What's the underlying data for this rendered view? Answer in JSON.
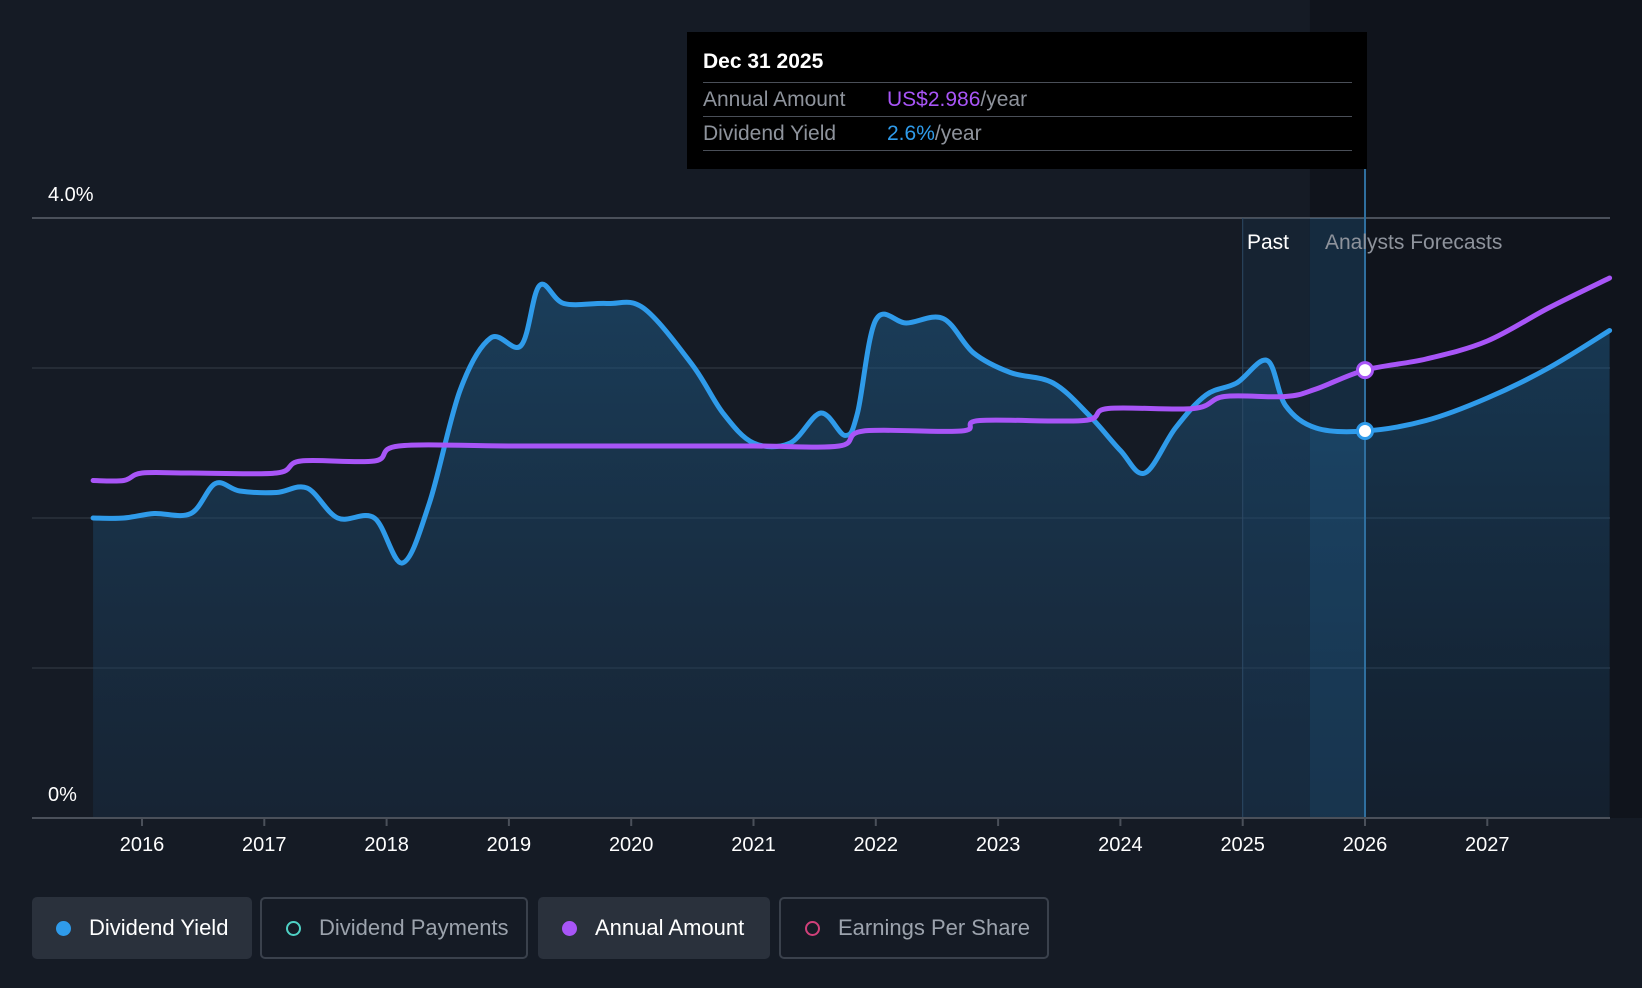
{
  "tooltip": {
    "date": "Dec 31 2025",
    "rows": [
      {
        "label": "Annual Amount",
        "value": "US$2.986",
        "unit": "/year"
      },
      {
        "label": "Dividend Yield",
        "value": "2.6%",
        "unit": "/year"
      }
    ]
  },
  "regions": {
    "past_label": "Past",
    "forecast_label": "Analysts Forecasts"
  },
  "legend": [
    {
      "label": "Dividend Yield",
      "color": "#2f9bea",
      "style": "filled",
      "active": true
    },
    {
      "label": "Dividend Payments",
      "color": "#4fd1c5",
      "style": "hollow",
      "active": false
    },
    {
      "label": "Annual Amount",
      "color": "#a855f7",
      "style": "filled",
      "active": true
    },
    {
      "label": "Earnings Per Share",
      "color": "#d0407a",
      "style": "hollow",
      "active": false
    }
  ],
  "chart_data": {
    "type": "line",
    "y_tick_labels": [
      "4.0%",
      "0%"
    ],
    "ylim": [
      0,
      4.0
    ],
    "xlim": [
      2015.55,
      2028.0
    ],
    "x_ticks": [
      2016,
      2017,
      2018,
      2019,
      2020,
      2021,
      2022,
      2023,
      2024,
      2025,
      2026,
      2027
    ],
    "x_tick_labels": [
      "2016",
      "2017",
      "2018",
      "2019",
      "2020",
      "2021",
      "2022",
      "2023",
      "2024",
      "2025",
      "2026",
      "2027"
    ],
    "grid": true,
    "forecast_start": 2025.55,
    "past_band_start": 2025.0,
    "highlight_x": 2026.0,
    "series": [
      {
        "name": "Dividend Yield",
        "color": "#2f9bea",
        "points": [
          [
            2015.6,
            2.0
          ],
          [
            2015.85,
            2.0
          ],
          [
            2016.1,
            2.03
          ],
          [
            2016.4,
            2.03
          ],
          [
            2016.6,
            2.23
          ],
          [
            2016.8,
            2.18
          ],
          [
            2017.1,
            2.17
          ],
          [
            2017.35,
            2.2
          ],
          [
            2017.6,
            2.0
          ],
          [
            2017.9,
            2.0
          ],
          [
            2018.13,
            1.7
          ],
          [
            2018.35,
            2.1
          ],
          [
            2018.6,
            2.85
          ],
          [
            2018.85,
            3.2
          ],
          [
            2019.1,
            3.15
          ],
          [
            2019.25,
            3.55
          ],
          [
            2019.45,
            3.43
          ],
          [
            2019.8,
            3.43
          ],
          [
            2020.1,
            3.4
          ],
          [
            2020.5,
            3.02
          ],
          [
            2020.75,
            2.7
          ],
          [
            2021.0,
            2.5
          ],
          [
            2021.3,
            2.5
          ],
          [
            2021.55,
            2.7
          ],
          [
            2021.75,
            2.55
          ],
          [
            2021.85,
            2.7
          ],
          [
            2022.0,
            3.32
          ],
          [
            2022.25,
            3.3
          ],
          [
            2022.55,
            3.33
          ],
          [
            2022.8,
            3.1
          ],
          [
            2023.1,
            2.97
          ],
          [
            2023.45,
            2.9
          ],
          [
            2023.75,
            2.68
          ],
          [
            2024.0,
            2.45
          ],
          [
            2024.2,
            2.3
          ],
          [
            2024.45,
            2.6
          ],
          [
            2024.7,
            2.82
          ],
          [
            2024.95,
            2.9
          ],
          [
            2025.2,
            3.05
          ],
          [
            2025.35,
            2.75
          ],
          [
            2025.6,
            2.6
          ],
          [
            2026.0,
            2.58
          ],
          [
            2026.5,
            2.65
          ],
          [
            2027.0,
            2.8
          ],
          [
            2027.5,
            3.0
          ],
          [
            2028.0,
            3.25
          ]
        ]
      },
      {
        "name": "Annual Amount",
        "color": "#a855f7",
        "points": [
          [
            2015.6,
            2.25
          ],
          [
            2015.85,
            2.25
          ],
          [
            2016.0,
            2.3
          ],
          [
            2016.4,
            2.3
          ],
          [
            2017.1,
            2.3
          ],
          [
            2017.3,
            2.38
          ],
          [
            2017.9,
            2.38
          ],
          [
            2018.1,
            2.48
          ],
          [
            2019.0,
            2.48
          ],
          [
            2020.0,
            2.48
          ],
          [
            2021.0,
            2.48
          ],
          [
            2021.7,
            2.48
          ],
          [
            2021.9,
            2.58
          ],
          [
            2022.7,
            2.58
          ],
          [
            2022.85,
            2.65
          ],
          [
            2023.7,
            2.65
          ],
          [
            2023.9,
            2.73
          ],
          [
            2024.6,
            2.73
          ],
          [
            2024.85,
            2.81
          ],
          [
            2025.35,
            2.81
          ],
          [
            2025.6,
            2.86
          ],
          [
            2026.0,
            2.986
          ],
          [
            2026.5,
            3.06
          ],
          [
            2027.0,
            3.18
          ],
          [
            2027.5,
            3.4
          ],
          [
            2028.0,
            3.6
          ]
        ]
      }
    ]
  }
}
